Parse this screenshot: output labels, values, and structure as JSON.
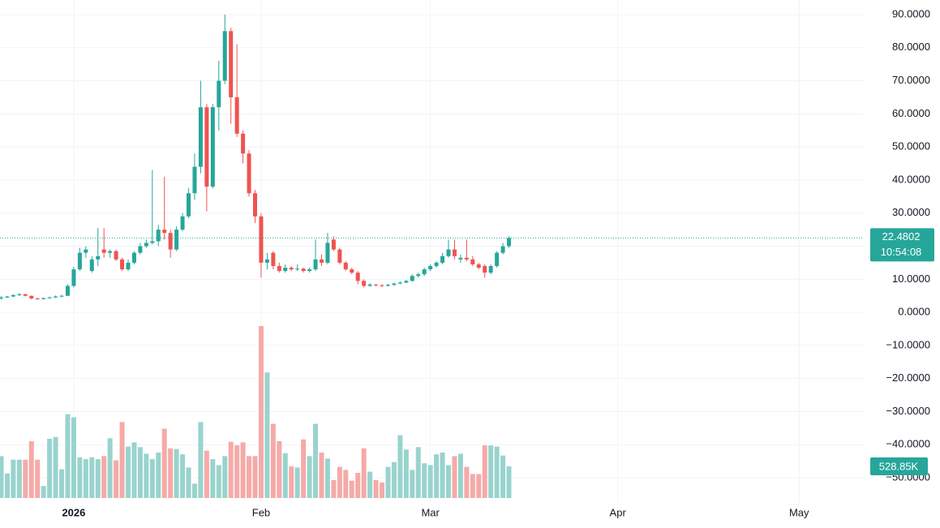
{
  "chart_data": {
    "type": "candlestick",
    "up_color": "#26a69a",
    "down_color": "#ef5350",
    "volume_up_color": "#99d3cd",
    "volume_down_color": "#f5aaa8",
    "grid": true,
    "xlim": [
      -0.2,
      142.7
    ],
    "xticks": [
      {
        "value": 12,
        "label": "2026"
      },
      {
        "value": 43,
        "label": "Feb"
      },
      {
        "value": 71,
        "label": "Mar"
      },
      {
        "value": 102,
        "label": "Apr"
      },
      {
        "value": 132,
        "label": "May"
      }
    ],
    "ylim": [
      -55,
      94.4
    ],
    "yticks": [
      {
        "value": 90,
        "label": "90.0000"
      },
      {
        "value": 80,
        "label": "80.0000"
      },
      {
        "value": 70,
        "label": "70.0000"
      },
      {
        "value": 60,
        "label": "60.0000"
      },
      {
        "value": 50,
        "label": "50.0000"
      },
      {
        "value": 40,
        "label": "40.0000"
      },
      {
        "value": 30,
        "label": "30.0000"
      },
      {
        "value": 20,
        "label": "20.0000"
      },
      {
        "value": 10,
        "label": "10.0000"
      },
      {
        "value": 0,
        "label": "0.0000"
      },
      {
        "value": -10,
        "label": "−10.0000"
      },
      {
        "value": -20,
        "label": "−20.0000"
      },
      {
        "value": -30,
        "label": "−30.0000"
      },
      {
        "value": -40,
        "label": "−40.0000"
      },
      {
        "value": -50,
        "label": "−50.0000"
      }
    ],
    "countdown": "10:54:08",
    "volume_label": "528.85K",
    "candles": [
      [
        4.2,
        4.9,
        3.9,
        4.5
      ],
      [
        4.5,
        5.0,
        4.3,
        4.8
      ],
      [
        4.8,
        5.5,
        4.6,
        5.2
      ],
      [
        5.2,
        5.8,
        5.0,
        5.5
      ],
      [
        5.5,
        5.6,
        4.8,
        5.0
      ],
      [
        5.0,
        5.1,
        3.9,
        4.2
      ],
      [
        4.2,
        4.4,
        3.8,
        4.0
      ],
      [
        4.0,
        4.5,
        3.9,
        4.3
      ],
      [
        4.3,
        4.8,
        4.1,
        4.5
      ],
      [
        4.5,
        5.1,
        4.3,
        4.8
      ],
      [
        4.8,
        5.3,
        4.6,
        5.0
      ],
      [
        5.0,
        8.5,
        4.9,
        8.0
      ],
      [
        8.0,
        13.8,
        7.5,
        13.0
      ],
      [
        13.0,
        19.5,
        12.5,
        18.0
      ],
      [
        18.0,
        20.0,
        16.5,
        19.0
      ],
      [
        12.5,
        17.0,
        12.0,
        16.0
      ],
      [
        16.0,
        25.5,
        14.0,
        17.0
      ],
      [
        19.0,
        25.5,
        16.5,
        18.0
      ],
      [
        18.0,
        19.0,
        16.5,
        18.5
      ],
      [
        18.5,
        19.0,
        15.5,
        16.0
      ],
      [
        16.0,
        16.5,
        12.5,
        13.0
      ],
      [
        13.0,
        16.0,
        12.5,
        15.0
      ],
      [
        15.0,
        18.5,
        14.5,
        18.0
      ],
      [
        18.0,
        21.0,
        17.5,
        20.0
      ],
      [
        20.0,
        22.0,
        19.5,
        21.0
      ],
      [
        21.0,
        43.0,
        20.5,
        21.5
      ],
      [
        21.5,
        26.5,
        20.0,
        25.0
      ],
      [
        25.0,
        41.0,
        22.0,
        24.0
      ],
      [
        24.0,
        25.0,
        16.5,
        19.0
      ],
      [
        19.0,
        26.0,
        18.5,
        25.0
      ],
      [
        25.0,
        30.0,
        24.5,
        29.0
      ],
      [
        29.0,
        37.5,
        28.5,
        36.0
      ],
      [
        36.0,
        48.0,
        34.0,
        44.0
      ],
      [
        44.0,
        70.0,
        42.0,
        62.0
      ],
      [
        62.0,
        63.0,
        30.5,
        38.0
      ],
      [
        38.0,
        63.0,
        37.5,
        62.0
      ],
      [
        62.0,
        76.0,
        55.0,
        70.0
      ],
      [
        70.0,
        90.0,
        69.0,
        85.0
      ],
      [
        85.0,
        86.0,
        57.0,
        65.0
      ],
      [
        65.0,
        81.0,
        53.0,
        54.0
      ],
      [
        54.0,
        55.0,
        45.0,
        48.0
      ],
      [
        48.0,
        49.0,
        35.0,
        36.0
      ],
      [
        36.0,
        37.0,
        27.0,
        29.0
      ],
      [
        29.0,
        30.0,
        10.5,
        15.0
      ],
      [
        15.0,
        18.0,
        13.0,
        16.0
      ],
      [
        18.0,
        18.5,
        13.0,
        14.0
      ],
      [
        14.0,
        15.0,
        12.0,
        12.5
      ],
      [
        12.5,
        14.5,
        12.0,
        13.5
      ],
      [
        13.5,
        14.0,
        12.5,
        13.0
      ],
      [
        13.0,
        14.5,
        12.5,
        13.2
      ],
      [
        13.2,
        13.5,
        12.0,
        12.5
      ],
      [
        12.5,
        13.5,
        12.0,
        13.0
      ],
      [
        13.0,
        22.0,
        12.5,
        16.0
      ],
      [
        16.0,
        17.5,
        14.0,
        15.0
      ],
      [
        15.0,
        24.0,
        14.5,
        21.0
      ],
      [
        22.0,
        23.0,
        18.5,
        19.0
      ],
      [
        19.0,
        19.5,
        14.5,
        15.0
      ],
      [
        15.0,
        15.5,
        12.5,
        13.0
      ],
      [
        13.0,
        13.5,
        11.5,
        12.0
      ],
      [
        12.0,
        12.5,
        8.5,
        9.5
      ],
      [
        9.5,
        10.0,
        7.5,
        8.0
      ],
      [
        8.0,
        8.8,
        7.8,
        8.4
      ],
      [
        8.4,
        8.6,
        7.9,
        8.2
      ],
      [
        8.2,
        8.5,
        7.6,
        8.0
      ],
      [
        8.0,
        8.6,
        7.8,
        8.3
      ],
      [
        8.3,
        9.0,
        8.0,
        8.7
      ],
      [
        8.7,
        9.4,
        8.5,
        9.0
      ],
      [
        9.0,
        9.8,
        8.8,
        9.5
      ],
      [
        9.5,
        11.5,
        9.3,
        11.0
      ],
      [
        11.0,
        12.0,
        10.5,
        11.5
      ],
      [
        11.5,
        13.5,
        11.0,
        13.0
      ],
      [
        13.0,
        14.5,
        12.5,
        14.0
      ],
      [
        14.0,
        15.5,
        13.5,
        15.0
      ],
      [
        15.0,
        18.0,
        14.5,
        17.0
      ],
      [
        17.0,
        22.0,
        16.5,
        19.0
      ],
      [
        19.0,
        22.0,
        16.0,
        17.0
      ],
      [
        16.0,
        17.5,
        15.0,
        16.5
      ],
      [
        16.5,
        22.0,
        15.5,
        16.0
      ],
      [
        16.0,
        17.0,
        14.0,
        14.5
      ],
      [
        14.5,
        15.0,
        13.0,
        13.5
      ],
      [
        14.0,
        14.5,
        10.5,
        12.0
      ],
      [
        12.0,
        14.5,
        11.5,
        14.0
      ],
      [
        14.0,
        18.5,
        13.5,
        18.0
      ],
      [
        18.0,
        21.0,
        17.5,
        20.0
      ],
      [
        20.0,
        23.0,
        19.5,
        22.4802
      ]
    ],
    "volume": [
      700000,
      410000,
      640000,
      640000,
      640000,
      950000,
      640000,
      200000,
      990000,
      1020000,
      480000,
      1400000,
      1350000,
      680000,
      650000,
      680000,
      650000,
      700000,
      1000000,
      630000,
      1270000,
      860000,
      930000,
      850000,
      740000,
      650000,
      760000,
      1160000,
      830000,
      820000,
      730000,
      510000,
      240000,
      1270000,
      790000,
      650000,
      550000,
      700000,
      940000,
      880000,
      930000,
      700000,
      700000,
      2875000,
      2100000,
      1240000,
      950000,
      750000,
      530000,
      510000,
      980000,
      700000,
      1240000,
      760000,
      660000,
      300000,
      520000,
      470000,
      290000,
      420000,
      830000,
      440000,
      300000,
      260000,
      520000,
      600000,
      1050000,
      810000,
      470000,
      850000,
      580000,
      550000,
      730000,
      760000,
      550000,
      700000,
      740000,
      520000,
      400000,
      400000,
      880000,
      880000,
      860000,
      710000,
      528850
    ]
  }
}
